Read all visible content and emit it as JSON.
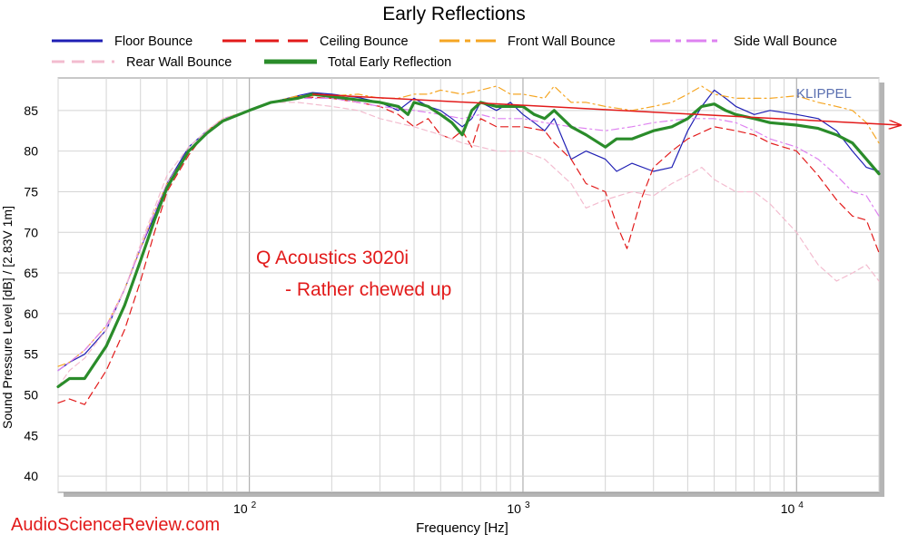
{
  "chart_data": {
    "type": "line",
    "title": "Early Reflections",
    "xlabel": "Frequency [Hz]",
    "ylabel": "Sound Pressure Level [dB]  / [2.83V 1m]",
    "x_scale": "log",
    "xlim": [
      20,
      20000
    ],
    "ylim": [
      38,
      89
    ],
    "grid": true,
    "legend_position": "top",
    "x_ticks": [
      {
        "value": 100,
        "base": "10",
        "exp": "2"
      },
      {
        "value": 1000,
        "base": "10",
        "exp": "3"
      },
      {
        "value": 10000,
        "base": "10",
        "exp": "4"
      }
    ],
    "y_ticks": [
      40,
      45,
      50,
      55,
      60,
      65,
      70,
      75,
      80,
      85
    ],
    "series": [
      {
        "name": "Floor Bounce",
        "color": "#1f1fb4",
        "width": 1.2,
        "dash": "",
        "points": [
          [
            20,
            53
          ],
          [
            22,
            54
          ],
          [
            25,
            55
          ],
          [
            30,
            58
          ],
          [
            35,
            63
          ],
          [
            40,
            68
          ],
          [
            45,
            72
          ],
          [
            50,
            76
          ],
          [
            60,
            80.5
          ],
          [
            70,
            82.5
          ],
          [
            80,
            83.8
          ],
          [
            100,
            85
          ],
          [
            120,
            86
          ],
          [
            150,
            86.8
          ],
          [
            170,
            87.2
          ],
          [
            200,
            87
          ],
          [
            250,
            86.6
          ],
          [
            300,
            86
          ],
          [
            350,
            85
          ],
          [
            400,
            86.5
          ],
          [
            450,
            85.5
          ],
          [
            500,
            85
          ],
          [
            550,
            84
          ],
          [
            600,
            83
          ],
          [
            650,
            84
          ],
          [
            700,
            86
          ],
          [
            800,
            85
          ],
          [
            900,
            86
          ],
          [
            1000,
            84.5
          ],
          [
            1100,
            83.5
          ],
          [
            1200,
            82.5
          ],
          [
            1300,
            84
          ],
          [
            1500,
            79
          ],
          [
            1700,
            80
          ],
          [
            2000,
            79
          ],
          [
            2200,
            77.5
          ],
          [
            2500,
            78.5
          ],
          [
            3000,
            77.5
          ],
          [
            3500,
            78
          ],
          [
            4000,
            82.5
          ],
          [
            4500,
            85.5
          ],
          [
            5000,
            87.5
          ],
          [
            5500,
            86.5
          ],
          [
            6000,
            85.5
          ],
          [
            7000,
            84.5
          ],
          [
            8000,
            85
          ],
          [
            10000,
            84.5
          ],
          [
            12000,
            84
          ],
          [
            14000,
            82.5
          ],
          [
            16000,
            80
          ],
          [
            18000,
            78
          ],
          [
            20000,
            77.5
          ]
        ]
      },
      {
        "name": "Ceiling Bounce",
        "color": "#e21a1a",
        "width": 1.2,
        "dash": "8,5",
        "points": [
          [
            20,
            49
          ],
          [
            22,
            49.5
          ],
          [
            25,
            48.8
          ],
          [
            30,
            53
          ],
          [
            35,
            58
          ],
          [
            40,
            64
          ],
          [
            45,
            70
          ],
          [
            50,
            75
          ],
          [
            60,
            79.5
          ],
          [
            70,
            82.5
          ],
          [
            80,
            83.8
          ],
          [
            100,
            85
          ],
          [
            120,
            86
          ],
          [
            150,
            86.7
          ],
          [
            200,
            86.5
          ],
          [
            250,
            86
          ],
          [
            300,
            85.5
          ],
          [
            350,
            84.5
          ],
          [
            400,
            83
          ],
          [
            450,
            84
          ],
          [
            500,
            82
          ],
          [
            550,
            81.5
          ],
          [
            600,
            82.5
          ],
          [
            650,
            80.5
          ],
          [
            700,
            84
          ],
          [
            800,
            83
          ],
          [
            1000,
            83
          ],
          [
            1200,
            82.5
          ],
          [
            1300,
            81
          ],
          [
            1500,
            79
          ],
          [
            1700,
            76
          ],
          [
            2000,
            75
          ],
          [
            2200,
            71
          ],
          [
            2400,
            68
          ],
          [
            2700,
            74
          ],
          [
            3000,
            78
          ],
          [
            3500,
            80
          ],
          [
            4000,
            81.5
          ],
          [
            5000,
            83
          ],
          [
            6000,
            82.5
          ],
          [
            7000,
            82
          ],
          [
            8000,
            81
          ],
          [
            10000,
            80
          ],
          [
            12000,
            77
          ],
          [
            14000,
            74
          ],
          [
            16000,
            72
          ],
          [
            18000,
            71.5
          ],
          [
            20000,
            67.5
          ]
        ]
      },
      {
        "name": "Front Wall Bounce",
        "color": "#f5a623",
        "width": 1.2,
        "dash": "8,4,2,4",
        "points": [
          [
            20,
            53.5
          ],
          [
            22,
            54
          ],
          [
            25,
            55.5
          ],
          [
            30,
            58.5
          ],
          [
            35,
            63
          ],
          [
            40,
            68
          ],
          [
            45,
            72.5
          ],
          [
            50,
            76
          ],
          [
            60,
            80
          ],
          [
            70,
            82.5
          ],
          [
            80,
            84
          ],
          [
            100,
            85
          ],
          [
            120,
            86
          ],
          [
            150,
            86.8
          ],
          [
            200,
            86.8
          ],
          [
            250,
            87
          ],
          [
            300,
            86.5
          ],
          [
            350,
            86.5
          ],
          [
            400,
            87
          ],
          [
            450,
            87
          ],
          [
            500,
            87.5
          ],
          [
            600,
            87
          ],
          [
            700,
            87.5
          ],
          [
            800,
            88
          ],
          [
            900,
            87
          ],
          [
            1000,
            87
          ],
          [
            1200,
            86.5
          ],
          [
            1300,
            88
          ],
          [
            1500,
            86
          ],
          [
            1700,
            86
          ],
          [
            2000,
            85.5
          ],
          [
            2500,
            85
          ],
          [
            3000,
            85.5
          ],
          [
            3500,
            86
          ],
          [
            4000,
            87
          ],
          [
            4500,
            88
          ],
          [
            5000,
            87
          ],
          [
            6000,
            86.5
          ],
          [
            7000,
            86.5
          ],
          [
            8000,
            86.5
          ],
          [
            10000,
            86.8
          ],
          [
            12000,
            86
          ],
          [
            14000,
            85.5
          ],
          [
            16000,
            85
          ],
          [
            18000,
            83.5
          ],
          [
            20000,
            81
          ]
        ]
      },
      {
        "name": "Side Wall Bounce",
        "color": "#de82f0",
        "width": 1.2,
        "dash": "8,4,2,4",
        "points": [
          [
            20,
            53
          ],
          [
            22,
            54
          ],
          [
            25,
            55.5
          ],
          [
            30,
            58.5
          ],
          [
            35,
            63
          ],
          [
            40,
            68
          ],
          [
            45,
            72.5
          ],
          [
            50,
            76
          ],
          [
            60,
            80
          ],
          [
            70,
            82.5
          ],
          [
            80,
            84
          ],
          [
            100,
            85
          ],
          [
            120,
            86
          ],
          [
            150,
            86.5
          ],
          [
            200,
            86.5
          ],
          [
            250,
            86
          ],
          [
            300,
            85.5
          ],
          [
            400,
            85
          ],
          [
            500,
            84.5
          ],
          [
            600,
            84
          ],
          [
            700,
            84.5
          ],
          [
            800,
            84
          ],
          [
            1000,
            84
          ],
          [
            1200,
            83.5
          ],
          [
            1500,
            83
          ],
          [
            2000,
            82.5
          ],
          [
            2500,
            83
          ],
          [
            3000,
            83.5
          ],
          [
            4000,
            84
          ],
          [
            5000,
            84
          ],
          [
            6000,
            83.5
          ],
          [
            7000,
            82.5
          ],
          [
            8000,
            81.5
          ],
          [
            10000,
            80.5
          ],
          [
            12000,
            79
          ],
          [
            14000,
            77
          ],
          [
            16000,
            75
          ],
          [
            18000,
            74.5
          ],
          [
            20000,
            72
          ]
        ]
      },
      {
        "name": "Rear Wall Bounce",
        "color": "#f3bccf",
        "width": 1.2,
        "dash": "6,4",
        "points": [
          [
            20,
            51
          ],
          [
            22,
            53
          ],
          [
            25,
            54.5
          ],
          [
            30,
            58
          ],
          [
            35,
            63
          ],
          [
            40,
            68.5
          ],
          [
            45,
            73
          ],
          [
            50,
            77
          ],
          [
            60,
            80.5
          ],
          [
            70,
            82.5
          ],
          [
            80,
            84
          ],
          [
            100,
            85
          ],
          [
            120,
            86
          ],
          [
            150,
            86
          ],
          [
            200,
            85.5
          ],
          [
            250,
            85
          ],
          [
            300,
            84
          ],
          [
            400,
            83
          ],
          [
            500,
            82
          ],
          [
            600,
            81
          ],
          [
            700,
            80.5
          ],
          [
            800,
            80
          ],
          [
            1000,
            80
          ],
          [
            1200,
            79
          ],
          [
            1500,
            76
          ],
          [
            1700,
            73
          ],
          [
            2000,
            74
          ],
          [
            2500,
            75
          ],
          [
            3000,
            74.5
          ],
          [
            3500,
            76
          ],
          [
            4000,
            77
          ],
          [
            4500,
            78
          ],
          [
            5000,
            76.5
          ],
          [
            6000,
            75
          ],
          [
            7000,
            75
          ],
          [
            8000,
            73.5
          ],
          [
            10000,
            70
          ],
          [
            12000,
            66
          ],
          [
            14000,
            64
          ],
          [
            16000,
            65
          ],
          [
            18000,
            66
          ],
          [
            20000,
            64
          ]
        ]
      },
      {
        "name": "Total Early Reflection",
        "color": "#2a8c2a",
        "width": 3.2,
        "dash": "",
        "points": [
          [
            20,
            51
          ],
          [
            22,
            52
          ],
          [
            25,
            52
          ],
          [
            30,
            56
          ],
          [
            35,
            61
          ],
          [
            40,
            66.5
          ],
          [
            45,
            71.5
          ],
          [
            50,
            75.5
          ],
          [
            60,
            80
          ],
          [
            70,
            82.2
          ],
          [
            80,
            83.7
          ],
          [
            100,
            85
          ],
          [
            120,
            86
          ],
          [
            150,
            86.5
          ],
          [
            170,
            87
          ],
          [
            200,
            86.7
          ],
          [
            250,
            86.3
          ],
          [
            300,
            86
          ],
          [
            350,
            85.5
          ],
          [
            380,
            84.5
          ],
          [
            400,
            86
          ],
          [
            450,
            85.5
          ],
          [
            500,
            84.5
          ],
          [
            550,
            83.5
          ],
          [
            600,
            82
          ],
          [
            650,
            85
          ],
          [
            700,
            86
          ],
          [
            800,
            85.5
          ],
          [
            900,
            85.5
          ],
          [
            1000,
            85.5
          ],
          [
            1100,
            84.5
          ],
          [
            1200,
            84
          ],
          [
            1300,
            85
          ],
          [
            1500,
            83
          ],
          [
            1700,
            82
          ],
          [
            2000,
            80.5
          ],
          [
            2200,
            81.5
          ],
          [
            2500,
            81.5
          ],
          [
            3000,
            82.5
          ],
          [
            3500,
            83
          ],
          [
            4000,
            84
          ],
          [
            4500,
            85.5
          ],
          [
            5000,
            85.8
          ],
          [
            5500,
            85
          ],
          [
            6000,
            84.5
          ],
          [
            7000,
            84
          ],
          [
            8000,
            83.5
          ],
          [
            10000,
            83.2
          ],
          [
            12000,
            82.8
          ],
          [
            14000,
            82
          ],
          [
            16000,
            81
          ],
          [
            18000,
            79
          ],
          [
            20000,
            77.2
          ]
        ]
      }
    ],
    "trend_arrow": {
      "from": [
        170,
        87
      ],
      "to": [
        24000,
        83.2
      ],
      "color": "#e21a1a"
    },
    "annotations": [
      {
        "text": "Q Acoustics 3020i",
        "color": "#e21a1a"
      },
      {
        "text": "- Rather chewed up",
        "color": "#e21a1a"
      },
      {
        "text": "KLIPPEL",
        "color": "#5a6fb0"
      }
    ],
    "watermark": "AudioScienceReview.com"
  }
}
